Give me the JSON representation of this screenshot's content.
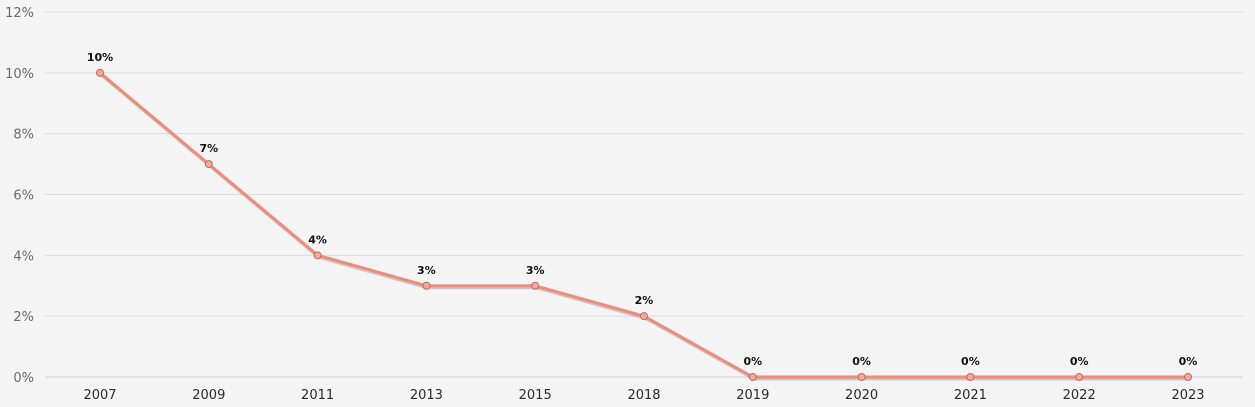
{
  "chart_data": {
    "type": "line",
    "title": "",
    "xlabel": "",
    "ylabel": "",
    "categories": [
      "2007",
      "2009",
      "2011",
      "2013",
      "2015",
      "2018",
      "2019",
      "2020",
      "2021",
      "2022",
      "2023"
    ],
    "series": [
      {
        "values": [
          10,
          7,
          4,
          3,
          3,
          2,
          0,
          0,
          0,
          0,
          0
        ],
        "labels": [
          "10%",
          "7%",
          "4%",
          "3%",
          "3%",
          "2%",
          "0%",
          "0%",
          "0%",
          "0%",
          "0%"
        ],
        "color": "#f08a7a"
      }
    ],
    "ylim": [
      0,
      12
    ],
    "yticks": [
      0,
      2,
      4,
      6,
      8,
      10,
      12
    ],
    "ytick_labels": [
      "0%",
      "2%",
      "4%",
      "6%",
      "8%",
      "10%",
      "12%"
    ],
    "grid": true,
    "legend": "none",
    "colors": {
      "line": "#f08a7a",
      "marker": "#f4a99e",
      "marker_edge": "#c0685a",
      "background": "#f4f4f4"
    }
  }
}
